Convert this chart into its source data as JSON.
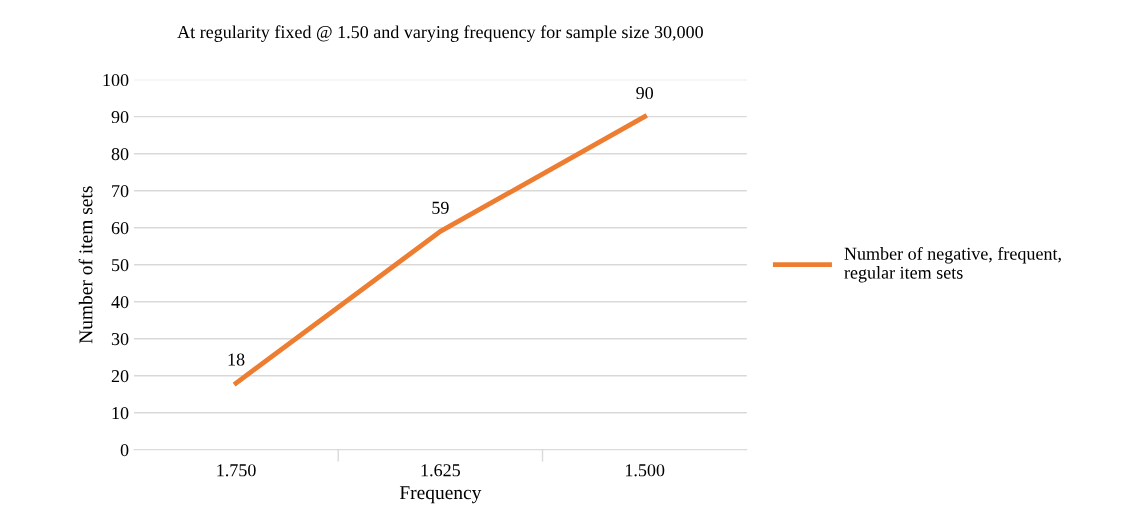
{
  "chart_data": {
    "type": "line",
    "title": "At regularity fixed @ 1.50 and varying frequency for sample size 30,000",
    "xlabel": "Frequency",
    "ylabel": "Number of item sets",
    "categories": [
      "1.750",
      "1.625",
      "1.500"
    ],
    "series": [
      {
        "name": "Number of negative, frequent, regular item sets",
        "color": "#ed7d31",
        "values": [
          18,
          59,
          90
        ]
      }
    ],
    "ylim": [
      0,
      100
    ],
    "yticks": [
      0,
      10,
      20,
      30,
      40,
      50,
      60,
      70,
      80,
      90,
      100
    ],
    "grid": "y",
    "legend": "right",
    "data_labels": true,
    "marker": "none",
    "line_style": "solid"
  }
}
